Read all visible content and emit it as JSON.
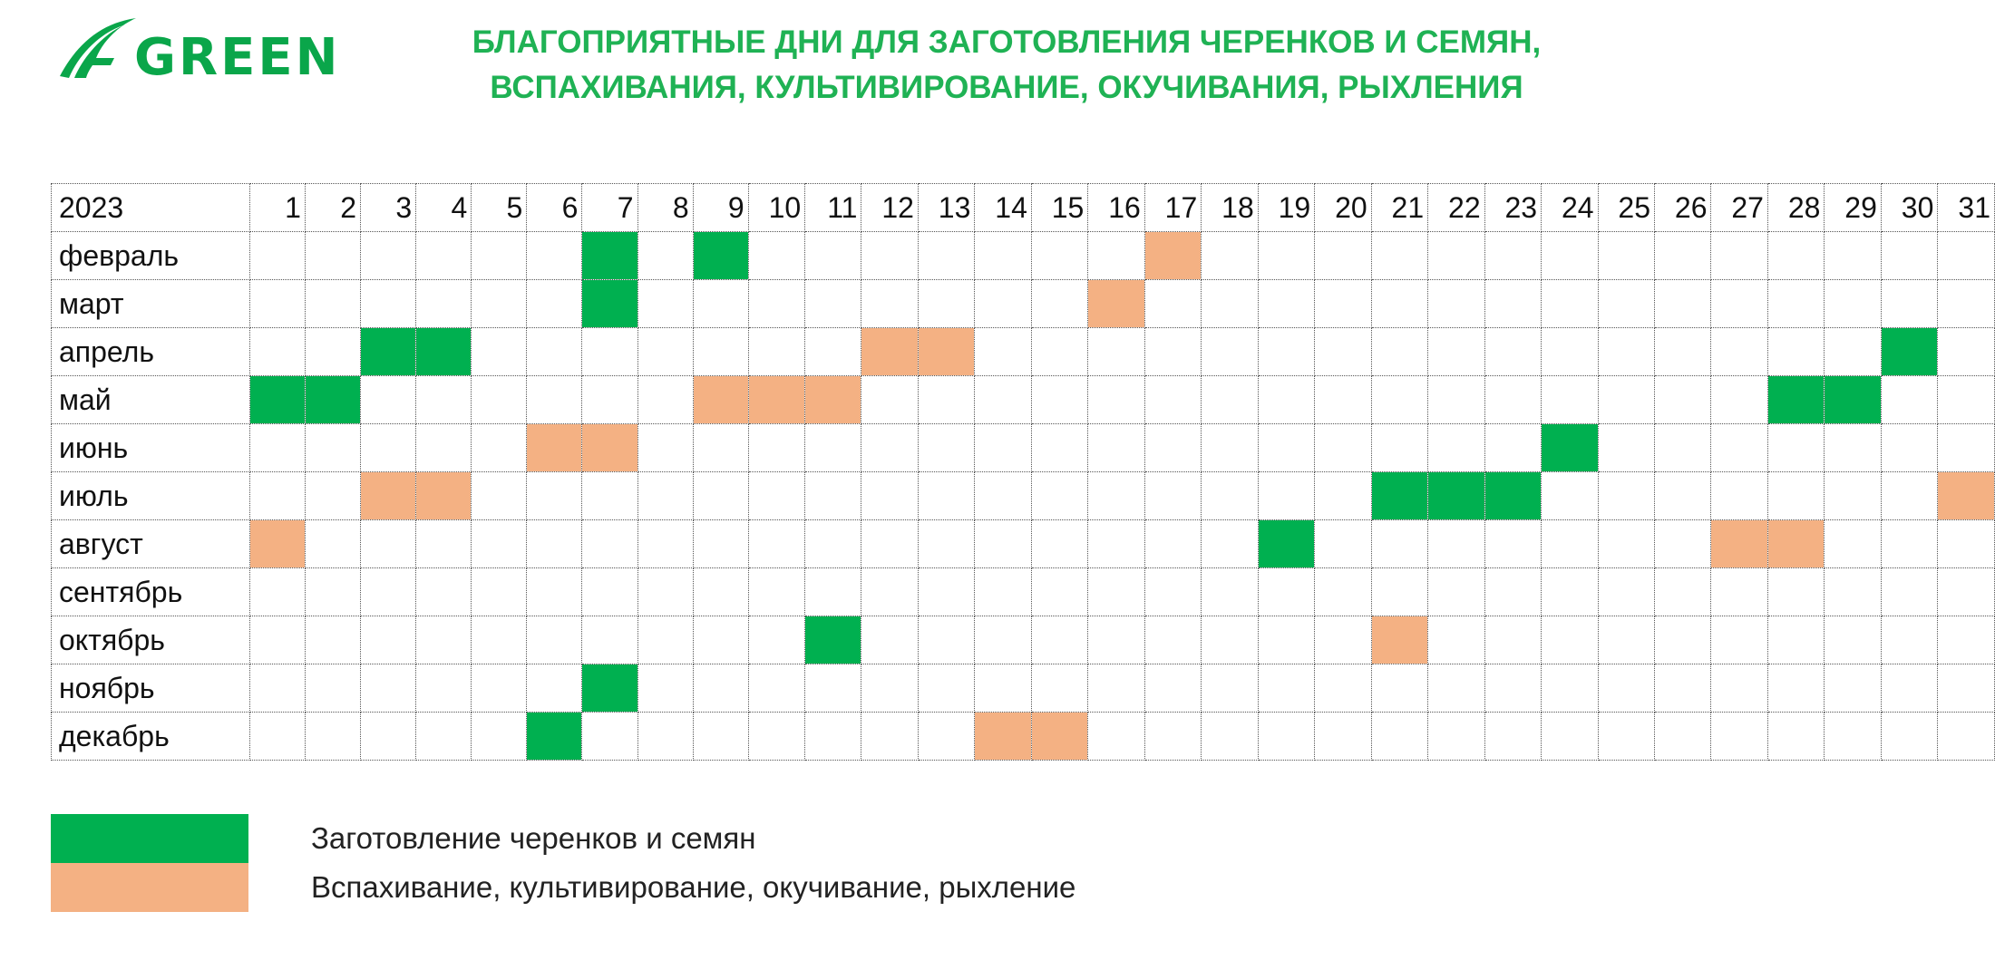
{
  "logo": {
    "text": "GREEN",
    "icon": "agreen-logo-a",
    "color": "#0aa64a"
  },
  "title": {
    "line1": "БЛАГОПРИЯТНЫЕ ДНИ ДЛЯ ЗАГОТОВЛЕНИЯ ЧЕРЕНКОВ И СЕМЯН,",
    "line2": "ВСПАХИВАНИЯ, КУЛЬТИВИРОВАНИЕ, ОКУЧИВАНИЯ, РЫХЛЕНИЯ"
  },
  "colors": {
    "green": "#00b050",
    "orange": "#f4b183",
    "title": "#1fb254"
  },
  "table": {
    "year": "2023",
    "days": [
      "1",
      "2",
      "3",
      "4",
      "5",
      "6",
      "7",
      "8",
      "9",
      "10",
      "11",
      "12",
      "13",
      "14",
      "15",
      "16",
      "17",
      "18",
      "19",
      "20",
      "21",
      "22",
      "23",
      "24",
      "25",
      "26",
      "27",
      "28",
      "29",
      "30",
      "31"
    ],
    "months": [
      {
        "name": "февраль",
        "green": [
          7,
          9
        ],
        "orange": [
          17
        ]
      },
      {
        "name": "март",
        "green": [
          7
        ],
        "orange": [
          16
        ]
      },
      {
        "name": "апрель",
        "green": [
          3,
          4,
          30
        ],
        "orange": [
          12,
          13
        ]
      },
      {
        "name": "май",
        "green": [
          1,
          2,
          28,
          29
        ],
        "orange": [
          9,
          10,
          11
        ]
      },
      {
        "name": "июнь",
        "green": [
          24
        ],
        "orange": [
          6,
          7
        ]
      },
      {
        "name": "июль",
        "green": [
          21,
          22,
          23
        ],
        "orange": [
          3,
          4,
          31
        ]
      },
      {
        "name": "август",
        "green": [
          19
        ],
        "orange": [
          1,
          27,
          28
        ]
      },
      {
        "name": "сентябрь",
        "green": [],
        "orange": []
      },
      {
        "name": "октябрь",
        "green": [
          11
        ],
        "orange": [
          21
        ]
      },
      {
        "name": "ноябрь",
        "green": [
          7
        ],
        "orange": []
      },
      {
        "name": "декабрь",
        "green": [
          6
        ],
        "orange": [
          14,
          15
        ]
      }
    ]
  },
  "legend": {
    "green_label": "Заготовление черенков и семян",
    "orange_label": "Вспахивание, культивирование, окучивание, рыхление"
  }
}
